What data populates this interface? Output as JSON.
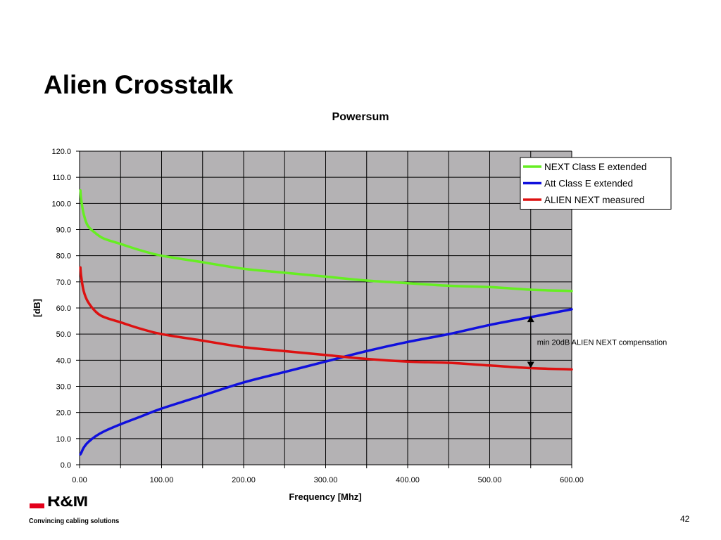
{
  "slide": {
    "title": "Alien Crosstalk",
    "page_number": "42"
  },
  "footer": {
    "logo_text": "R&M",
    "tagline": "Convincing cabling solutions",
    "brand_color": "#e3001b"
  },
  "chart_data": {
    "type": "line",
    "title": "Powersum",
    "xlabel": "Frequency [Mhz]",
    "ylabel": "[dB]",
    "xlim": [
      0,
      600
    ],
    "ylim": [
      0,
      120
    ],
    "x_ticks": [
      0,
      50,
      100,
      150,
      200,
      250,
      300,
      350,
      400,
      450,
      500,
      550,
      600
    ],
    "x_tick_labels": [
      "0.00",
      "100.00",
      "200.00",
      "300.00",
      "400.00",
      "500.00",
      "600.00"
    ],
    "x_tick_label_values": [
      0,
      100,
      200,
      300,
      400,
      500,
      600
    ],
    "y_ticks": [
      0,
      10,
      20,
      30,
      40,
      50,
      60,
      70,
      80,
      90,
      100,
      110,
      120
    ],
    "y_tick_labels": [
      "0.0",
      "10.0",
      "20.0",
      "30.0",
      "40.0",
      "50.0",
      "60.0",
      "70.0",
      "80.0",
      "90.0",
      "100.0",
      "110.0",
      "120.0"
    ],
    "grid": true,
    "plot_background": "#b4b2b4",
    "legend_position": "top-right",
    "x": [
      1,
      2,
      5,
      10,
      20,
      30,
      50,
      75,
      100,
      150,
      200,
      250,
      300,
      350,
      400,
      450,
      500,
      550,
      600
    ],
    "series": [
      {
        "name": "NEXT Class E extended",
        "color": "#66ee22",
        "values": [
          105.0,
          101.5,
          96.0,
          91.5,
          88.5,
          86.5,
          84.5,
          82.0,
          80.0,
          77.5,
          75.0,
          73.5,
          72.0,
          70.5,
          69.5,
          68.5,
          68.0,
          67.0,
          66.5
        ]
      },
      {
        "name": "Att Class E extended",
        "color": "#1010dd",
        "values": [
          4.0,
          4.5,
          6.5,
          8.5,
          11.0,
          12.8,
          15.5,
          18.5,
          21.5,
          26.5,
          31.5,
          35.5,
          39.5,
          43.5,
          47.0,
          50.0,
          53.5,
          56.5,
          59.5
        ]
      },
      {
        "name": "ALIEN NEXT measured",
        "color": "#dd1111",
        "values": [
          75.5,
          72.0,
          66.5,
          62.5,
          58.5,
          56.5,
          54.5,
          52.0,
          50.0,
          47.5,
          45.0,
          43.5,
          42.0,
          40.5,
          39.5,
          39.0,
          38.0,
          37.0,
          36.5
        ]
      }
    ],
    "annotation": {
      "text": "min 20dB ALIEN NEXT compensation",
      "x": 550,
      "y_from": 57,
      "y_to": 37
    }
  }
}
